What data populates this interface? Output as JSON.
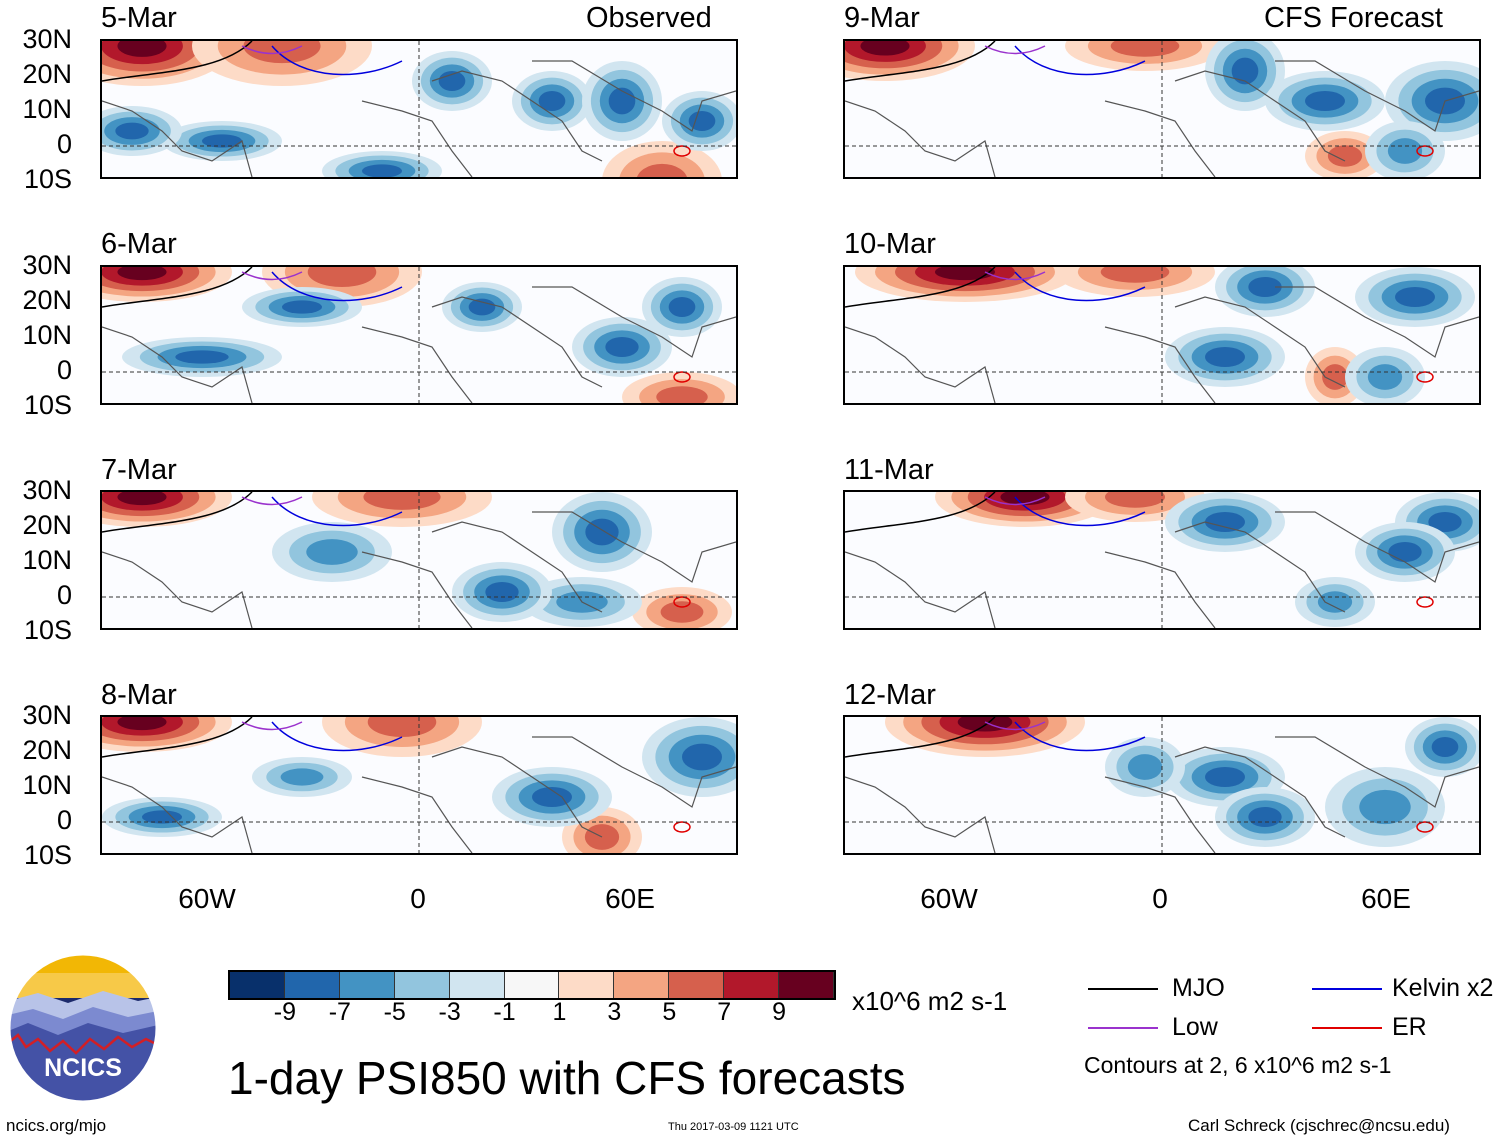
{
  "header": {
    "left_label": "Observed",
    "right_label": "CFS Forecast"
  },
  "lat_labels": [
    "30N",
    "20N",
    "10N",
    "0",
    "10S"
  ],
  "lon_labels": [
    "60W",
    "0",
    "60E"
  ],
  "panels_left": [
    {
      "date": "5-Mar"
    },
    {
      "date": "6-Mar"
    },
    {
      "date": "7-Mar"
    },
    {
      "date": "8-Mar"
    }
  ],
  "panels_right": [
    {
      "date": "9-Mar"
    },
    {
      "date": "10-Mar"
    },
    {
      "date": "11-Mar"
    },
    {
      "date": "12-Mar"
    }
  ],
  "colorbar": {
    "colors": [
      "#08306b",
      "#2166ac",
      "#4393c3",
      "#92c5de",
      "#d1e5f0",
      "#f7f7f7",
      "#fddbc7",
      "#f4a582",
      "#d6604d",
      "#b2182b",
      "#67001f"
    ],
    "labels": [
      "-9",
      "-7",
      "-5",
      "-3",
      "-1",
      "1",
      "3",
      "5",
      "7",
      "9"
    ],
    "units": "x10^6 m2 s-1"
  },
  "legend": {
    "items": [
      {
        "label": "MJO",
        "color": "#000000"
      },
      {
        "label": "Kelvin x2",
        "color": "#0000dd"
      },
      {
        "label": "Low",
        "color": "#9a32cd"
      },
      {
        "label": "ER",
        "color": "#e00000"
      }
    ],
    "contour_note": "Contours at 2, 6 x10^6 m2 s-1"
  },
  "logo": {
    "text": "NCICS"
  },
  "title": "1-day PSI850 with CFS forecasts",
  "footer": {
    "url": "ncics.org/mjo",
    "timestamp": "Thu 2017-03-09 1121 UTC",
    "credit": "Carl Schreck (cjschrec@ncsu.edu)"
  }
}
